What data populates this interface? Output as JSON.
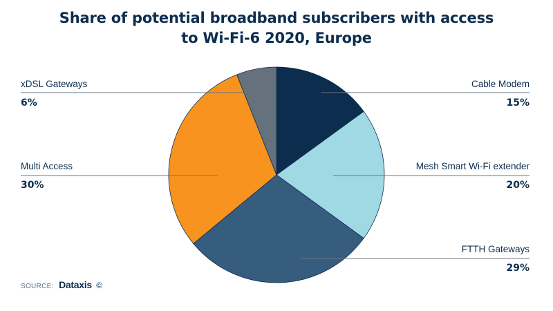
{
  "chart_data": {
    "type": "pie",
    "title_lines": [
      "Share of potential broadband subscribers with access",
      "to Wi-Fi-6 2020, Europe"
    ],
    "slices": [
      {
        "label": "Cable Modem",
        "value": 15,
        "display": "15%",
        "color": "#0c2d4e"
      },
      {
        "label": "Mesh Smart Wi-Fi extender",
        "value": 20,
        "display": "20%",
        "color": "#9ed9e4"
      },
      {
        "label": "FTTH Gateways",
        "value": 29,
        "display": "29%",
        "color": "#365c7e"
      },
      {
        "label": "Multi Access",
        "value": 30,
        "display": "30%",
        "color": "#f7931e"
      },
      {
        "label": "xDSL Gateways",
        "value": 6,
        "display": "6%",
        "color": "#66717e"
      }
    ],
    "legend": "none"
  },
  "source": {
    "label": "SOURCE:",
    "brand": "Dataxis",
    "copyright": "©"
  }
}
